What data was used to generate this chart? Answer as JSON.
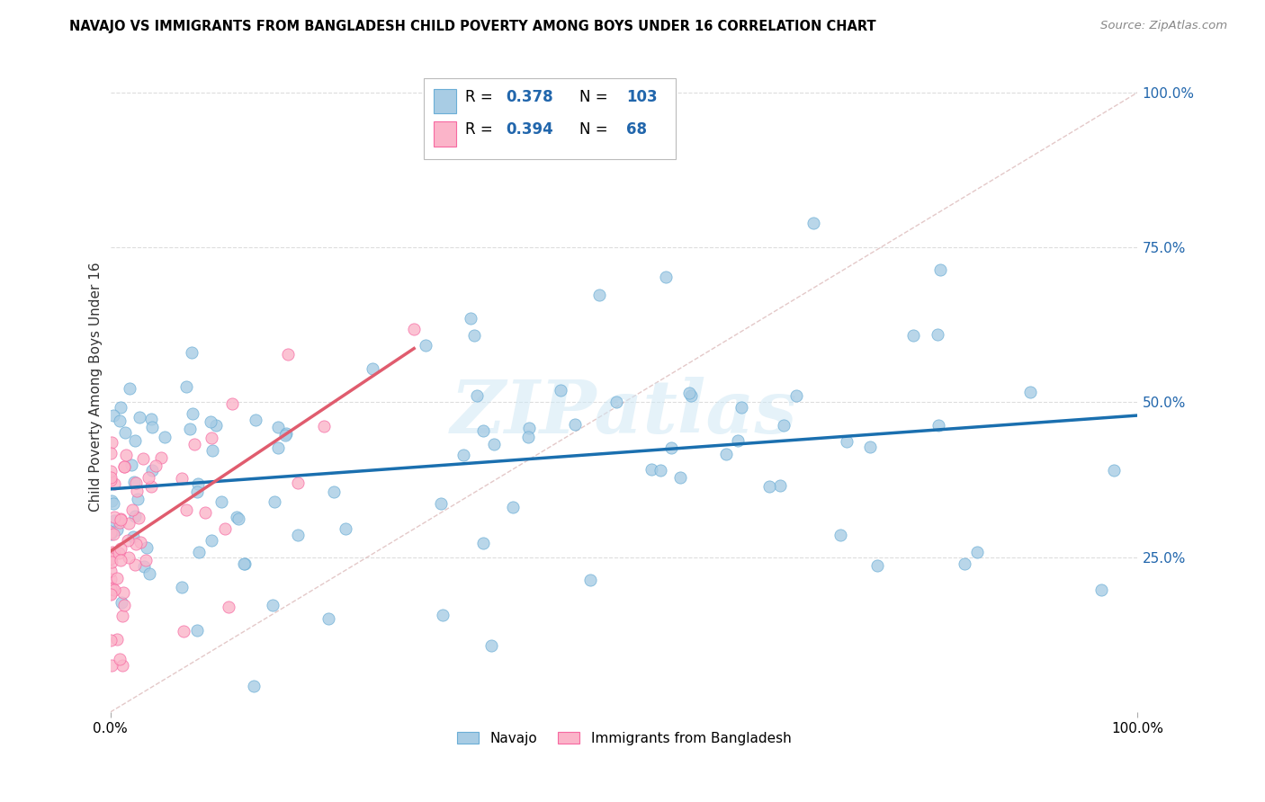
{
  "title": "NAVAJO VS IMMIGRANTS FROM BANGLADESH CHILD POVERTY AMONG BOYS UNDER 16 CORRELATION CHART",
  "source": "Source: ZipAtlas.com",
  "ylabel": "Child Poverty Among Boys Under 16",
  "navajo_R": 0.378,
  "navajo_N": 103,
  "bangladesh_R": 0.394,
  "bangladesh_N": 68,
  "navajo_color_fill": "#a8cce4",
  "navajo_color_edge": "#6baed6",
  "bangladesh_color_fill": "#fbb4c9",
  "bangladesh_color_edge": "#f768a1",
  "trend_navajo_color": "#1a6faf",
  "trend_bangladesh_color": "#e05c6e",
  "diagonal_color": "#ddbbbb",
  "grid_color": "#dddddd",
  "ytick_labels": [
    "25.0%",
    "50.0%",
    "75.0%",
    "100.0%"
  ],
  "ytick_values": [
    0.25,
    0.5,
    0.75,
    1.0
  ],
  "watermark_color": "#d0e8f5",
  "legend_navajo_label": "Navajo",
  "legend_bangladesh_label": "Immigrants from Bangladesh"
}
